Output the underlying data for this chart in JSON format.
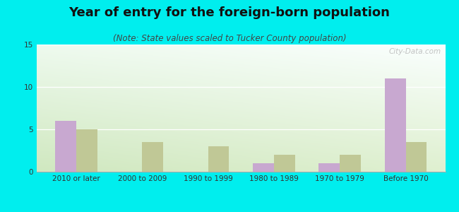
{
  "title": "Year of entry for the foreign-born population",
  "subtitle": "(Note: State values scaled to Tucker County population)",
  "categories": [
    "2010 or later",
    "2000 to 2009",
    "1990 to 1999",
    "1980 to 1989",
    "1970 to 1979",
    "Before 1970"
  ],
  "tucker_values": [
    6,
    0,
    0,
    1,
    1,
    11
  ],
  "wv_values": [
    5,
    3.5,
    3,
    2,
    2,
    3.5
  ],
  "tucker_color": "#c8a8d0",
  "wv_color": "#c0c896",
  "background_color": "#00eeee",
  "plot_bg_topleft": "#e8f5e0",
  "plot_bg_topright": "#f8fff8",
  "plot_bg_bottomleft": "#d0e8c0",
  "plot_bg_bottomright": "#e8f8e0",
  "ylim": [
    0,
    15
  ],
  "yticks": [
    0,
    5,
    10,
    15
  ],
  "bar_width": 0.32,
  "title_fontsize": 13,
  "subtitle_fontsize": 8.5,
  "legend_fontsize": 9,
  "tick_fontsize": 7.5,
  "watermark": "City-Data.com"
}
